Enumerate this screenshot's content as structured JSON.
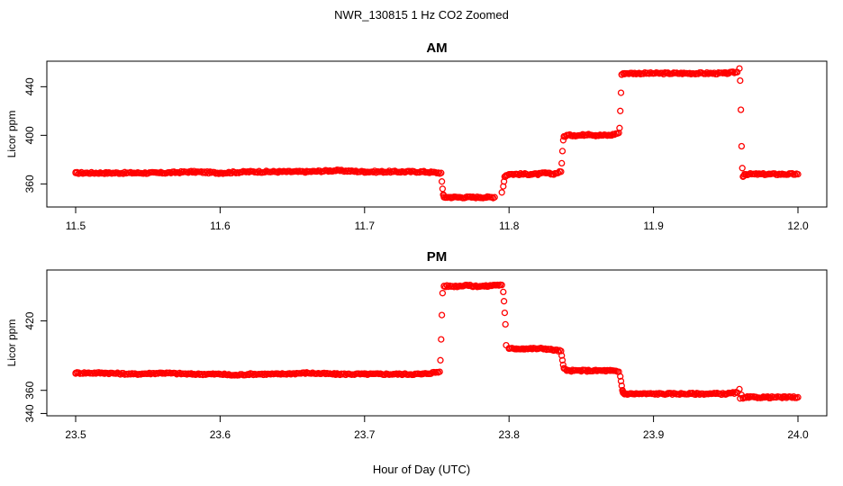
{
  "figure": {
    "title": "NWR_130815  1 Hz CO2 Zoomed",
    "xlabel": "Hour of Day (UTC)"
  },
  "chart_data": [
    {
      "type": "scatter",
      "title": "AM",
      "xlabel": "",
      "ylabel": "Licor ppm",
      "xlim": [
        11.5,
        12.0
      ],
      "ylim": [
        341,
        461
      ],
      "x_ticks": [
        "11.5",
        "11.6",
        "11.7",
        "11.8",
        "11.9",
        "12.0"
      ],
      "y_ticks": [
        "360",
        "400",
        "440"
      ],
      "marker_color": "#ff0000",
      "grid": false,
      "points_x": [
        11.5,
        11.52,
        11.54,
        11.56,
        11.58,
        11.6,
        11.62,
        11.64,
        11.66,
        11.68,
        11.7,
        11.72,
        11.74,
        11.753,
        11.7535,
        11.754,
        11.7545,
        11.755,
        11.757,
        11.76,
        11.765,
        11.77,
        11.775,
        11.78,
        11.785,
        11.79,
        11.795,
        11.796,
        11.7965,
        11.797,
        11.798,
        11.8,
        11.805,
        11.81,
        11.815,
        11.82,
        11.825,
        11.83,
        11.836,
        11.8365,
        11.837,
        11.8375,
        11.838,
        11.84,
        11.845,
        11.85,
        11.855,
        11.86,
        11.865,
        11.87,
        11.876,
        11.8765,
        11.877,
        11.8775,
        11.878,
        11.88,
        11.885,
        11.89,
        11.895,
        11.9,
        11.91,
        11.92,
        11.93,
        11.94,
        11.95,
        11.958,
        11.9595,
        11.96,
        11.9605,
        11.961,
        11.9615,
        11.962,
        11.963,
        11.97,
        11.98,
        11.99,
        12.0
      ],
      "points_y": [
        369,
        369,
        369,
        369,
        370,
        369,
        370,
        370,
        370,
        371,
        370,
        370,
        370,
        369,
        362,
        356,
        351,
        349,
        349,
        349,
        349,
        349,
        349,
        349,
        349,
        349,
        353,
        358,
        362,
        366,
        367,
        368,
        368,
        368,
        368,
        368,
        369,
        368,
        370,
        377,
        387,
        396,
        399,
        400,
        400,
        400,
        401,
        400,
        400,
        400,
        402,
        406,
        420,
        435,
        450,
        451,
        451,
        451,
        451,
        451,
        451,
        451,
        451,
        451,
        451,
        452,
        455,
        445,
        421,
        391,
        373,
        366,
        368,
        368,
        368,
        368,
        368
      ]
    },
    {
      "type": "scatter",
      "title": "PM",
      "xlabel": "",
      "ylabel": "Licor ppm",
      "xlim": [
        23.5,
        24.0
      ],
      "ylim": [
        338,
        464
      ],
      "x_ticks": [
        "23.5",
        "23.6",
        "23.7",
        "23.8",
        "23.9",
        "24.0"
      ],
      "y_ticks": [
        "340",
        "360",
        "420"
      ],
      "marker_color": "#ff0000",
      "grid": false,
      "points_x": [
        23.5,
        23.52,
        23.54,
        23.56,
        23.58,
        23.6,
        23.61,
        23.62,
        23.64,
        23.66,
        23.68,
        23.7,
        23.72,
        23.74,
        23.752,
        23.7525,
        23.753,
        23.7535,
        23.754,
        23.755,
        23.76,
        23.765,
        23.77,
        23.775,
        23.78,
        23.785,
        23.79,
        23.795,
        23.796,
        23.7965,
        23.797,
        23.7975,
        23.798,
        23.8,
        23.805,
        23.81,
        23.815,
        23.82,
        23.825,
        23.83,
        23.836,
        23.8365,
        23.837,
        23.8375,
        23.838,
        23.84,
        23.845,
        23.85,
        23.855,
        23.86,
        23.865,
        23.87,
        23.876,
        23.877,
        23.8775,
        23.878,
        23.8785,
        23.879,
        23.88,
        23.885,
        23.89,
        23.9,
        23.91,
        23.92,
        23.93,
        23.94,
        23.95,
        23.958,
        23.9595,
        23.96,
        23.961,
        23.962,
        23.965,
        23.97,
        23.98,
        23.99,
        24.0
      ],
      "points_y": [
        375,
        375,
        374,
        375,
        374,
        374,
        373,
        374,
        374,
        375,
        374,
        374,
        374,
        374,
        376,
        386,
        404,
        425,
        444,
        450,
        450,
        450,
        451,
        450,
        450,
        450,
        451,
        451,
        445,
        437,
        427,
        417,
        399,
        396,
        396,
        396,
        396,
        396,
        396,
        395,
        394,
        390,
        386,
        382,
        379,
        377,
        377,
        377,
        377,
        377,
        377,
        377,
        376,
        372,
        368,
        364,
        360,
        358,
        357,
        357,
        357,
        357,
        357,
        357,
        357,
        357,
        357,
        358,
        361,
        353,
        356,
        353,
        354,
        354,
        354,
        354,
        354
      ]
    }
  ]
}
